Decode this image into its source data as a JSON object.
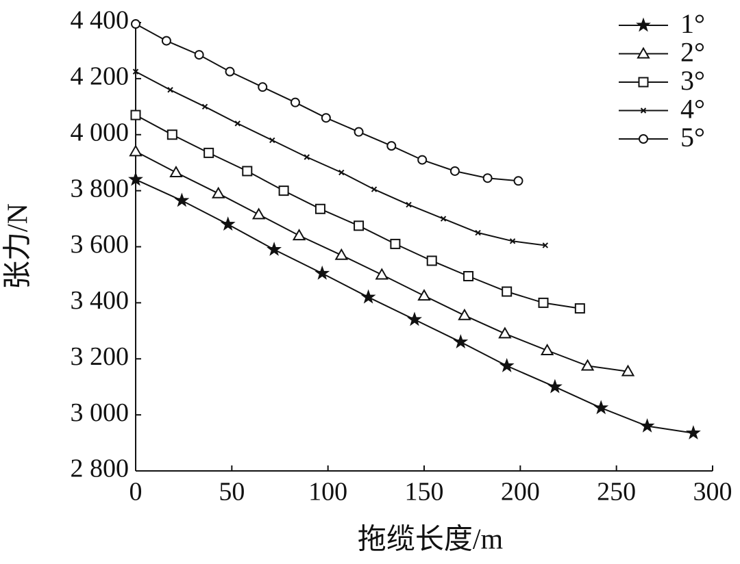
{
  "chart_data": {
    "type": "line",
    "x_label": "拖缆长度/m",
    "y_label": "张力/N",
    "xlim": [
      0,
      300
    ],
    "xticks": [
      0,
      50,
      100,
      150,
      200,
      250,
      300
    ],
    "ylim": [
      2800,
      4400
    ],
    "yticks": [
      {
        "value": 2800,
        "label": "2 800"
      },
      {
        "value": 3000,
        "label": "3 000"
      },
      {
        "value": 3200,
        "label": "3 200"
      },
      {
        "value": 3400,
        "label": "3 400"
      },
      {
        "value": 3600,
        "label": "3 600"
      },
      {
        "value": 3800,
        "label": "3 800"
      },
      {
        "value": 4000,
        "label": "4 000"
      },
      {
        "value": 4200,
        "label": "4 200"
      },
      {
        "value": 4400,
        "label": "4 400"
      }
    ],
    "legend": "top-right",
    "series": [
      {
        "name": "1°",
        "color": "#111111",
        "marker": "star",
        "x": [
          0,
          24,
          48,
          72,
          97,
          121,
          145,
          169,
          193,
          218,
          242,
          266,
          290
        ],
        "values": [
          3840,
          3765,
          3680,
          3590,
          3505,
          3420,
          3340,
          3260,
          3175,
          3100,
          3025,
          2960,
          2935
        ]
      },
      {
        "name": "2°",
        "color": "#111111",
        "marker": "triangle",
        "x": [
          0,
          21,
          43,
          64,
          85,
          107,
          128,
          150,
          171,
          192,
          214,
          235,
          256
        ],
        "values": [
          3940,
          3865,
          3790,
          3715,
          3640,
          3570,
          3500,
          3425,
          3355,
          3290,
          3230,
          3175,
          3155
        ]
      },
      {
        "name": "3°",
        "color": "#111111",
        "marker": "square",
        "x": [
          0,
          19,
          38,
          58,
          77,
          96,
          116,
          135,
          154,
          173,
          193,
          212,
          231
        ],
        "values": [
          4070,
          4000,
          3935,
          3870,
          3800,
          3735,
          3675,
          3610,
          3550,
          3495,
          3440,
          3400,
          3380
        ]
      },
      {
        "name": "4°",
        "color": "#111111",
        "marker": "cross",
        "x": [
          0,
          18,
          36,
          53,
          71,
          89,
          107,
          124,
          142,
          160,
          178,
          196,
          213
        ],
        "values": [
          4225,
          4160,
          4100,
          4040,
          3980,
          3920,
          3865,
          3805,
          3750,
          3700,
          3650,
          3620,
          3605
        ]
      },
      {
        "name": "5°",
        "color": "#111111",
        "marker": "circle",
        "x": [
          0,
          16,
          33,
          49,
          66,
          83,
          99,
          116,
          133,
          149,
          166,
          183,
          199
        ],
        "values": [
          4395,
          4335,
          4285,
          4225,
          4170,
          4115,
          4060,
          4010,
          3960,
          3910,
          3870,
          3845,
          3835
        ]
      }
    ]
  }
}
